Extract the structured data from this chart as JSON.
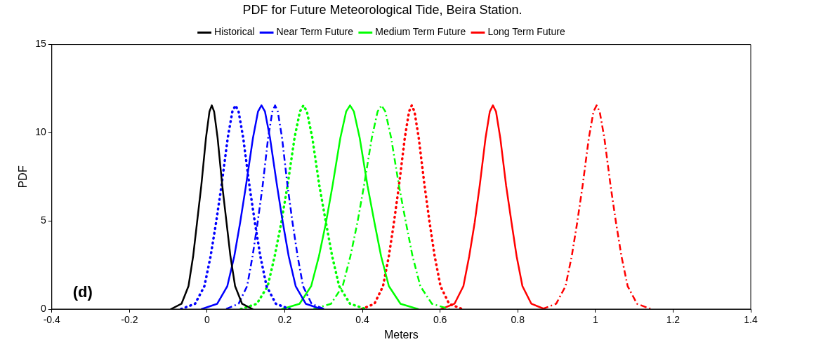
{
  "chart_data": {
    "type": "line",
    "title": "PDF for Future Meteorological Tide, Beira Station.",
    "xlabel": "Meters",
    "ylabel": "PDF",
    "xlim": [
      -0.4,
      1.4
    ],
    "xticks": [
      -0.4,
      -0.2,
      0,
      0.2,
      0.4,
      0.6,
      0.8,
      1,
      1.2,
      1.4
    ],
    "ylim": [
      0,
      15
    ],
    "yticks": [
      0,
      5,
      10,
      15
    ],
    "grid": false,
    "legend": "top",
    "marker": "none",
    "annotations": [
      "(d)"
    ],
    "series": [
      {
        "name": "Historical",
        "color": "#000000",
        "line_style": "solid",
        "x": [
          -0.093,
          -0.066,
          -0.048,
          -0.036,
          -0.026,
          -0.015,
          -0.003,
          0.006,
          0.012,
          0.018,
          0.027,
          0.039,
          0.05,
          0.06,
          0.072,
          0.09,
          0.117
        ],
        "values": [
          0,
          0.3,
          1.3,
          3,
          4.9,
          7,
          9.7,
          11.2,
          11.55,
          11.2,
          9.7,
          7,
          4.9,
          3,
          1.3,
          0.3,
          0
        ]
      },
      {
        "color": "#0000ff",
        "line_style": "dotted",
        "x": [
          -0.067,
          -0.031,
          -0.007,
          0.009,
          0.023,
          0.037,
          0.053,
          0.065,
          0.073,
          0.081,
          0.093,
          0.109,
          0.123,
          0.137,
          0.153,
          0.177,
          0.213
        ],
        "values": [
          0,
          0.3,
          1.3,
          3,
          4.9,
          7,
          9.7,
          11.2,
          11.55,
          11.2,
          9.7,
          7,
          4.9,
          3,
          1.3,
          0.3,
          0
        ]
      },
      {
        "name": "Near Term Future",
        "color": "#0000ff",
        "line_style": "solid",
        "x": [
          -0.014,
          0.026,
          0.052,
          0.07,
          0.085,
          0.1,
          0.118,
          0.131,
          0.14,
          0.149,
          0.162,
          0.18,
          0.195,
          0.21,
          0.228,
          0.254,
          0.294
        ],
        "values": [
          0,
          0.3,
          1.3,
          3,
          4.9,
          7,
          9.7,
          11.2,
          11.55,
          11.2,
          9.7,
          7,
          4.9,
          3,
          1.3,
          0.3,
          0
        ]
      },
      {
        "color": "#0000ff",
        "line_style": "dashed",
        "x": [
          0.049,
          0.081,
          0.103,
          0.117,
          0.13,
          0.143,
          0.157,
          0.168,
          0.175,
          0.182,
          0.193,
          0.207,
          0.22,
          0.233,
          0.247,
          0.269,
          0.301
        ],
        "values": [
          0,
          0.3,
          1.3,
          3,
          4.9,
          7,
          9.7,
          11.2,
          11.55,
          11.2,
          9.7,
          7,
          4.9,
          3,
          1.3,
          0.3,
          0
        ]
      },
      {
        "color": "#00ff00",
        "line_style": "dotted",
        "x": [
          0.087,
          0.128,
          0.156,
          0.174,
          0.191,
          0.207,
          0.225,
          0.239,
          0.248,
          0.257,
          0.271,
          0.289,
          0.306,
          0.322,
          0.34,
          0.368,
          0.409
        ],
        "values": [
          0,
          0.3,
          1.3,
          3,
          4.9,
          7,
          9.7,
          11.2,
          11.55,
          11.2,
          9.7,
          7,
          4.9,
          3,
          1.3,
          0.3,
          0
        ]
      },
      {
        "name": "Medium Term Future",
        "color": "#00ff00",
        "line_style": "solid",
        "x": [
          0.193,
          0.238,
          0.268,
          0.288,
          0.306,
          0.323,
          0.343,
          0.358,
          0.368,
          0.378,
          0.393,
          0.413,
          0.431,
          0.448,
          0.468,
          0.498,
          0.543
        ],
        "values": [
          0,
          0.3,
          1.3,
          3,
          4.9,
          7,
          9.7,
          11.2,
          11.55,
          11.2,
          9.7,
          7,
          4.9,
          3,
          1.3,
          0.3,
          0
        ]
      },
      {
        "color": "#00ff00",
        "line_style": "dashed",
        "x": [
          0.274,
          0.319,
          0.349,
          0.369,
          0.387,
          0.404,
          0.424,
          0.439,
          0.449,
          0.459,
          0.474,
          0.494,
          0.512,
          0.529,
          0.549,
          0.579,
          0.624
        ],
        "values": [
          0,
          0.3,
          1.3,
          3,
          4.9,
          7,
          9.7,
          11.2,
          11.55,
          11.2,
          9.7,
          7,
          4.9,
          3,
          1.3,
          0.3,
          0
        ]
      },
      {
        "color": "#ff0000",
        "line_style": "dotted",
        "x": [
          0.398,
          0.431,
          0.453,
          0.468,
          0.481,
          0.494,
          0.509,
          0.52,
          0.527,
          0.534,
          0.545,
          0.56,
          0.573,
          0.586,
          0.601,
          0.623,
          0.657
        ],
        "values": [
          0,
          0.3,
          1.3,
          3,
          4.9,
          7,
          9.7,
          11.2,
          11.55,
          11.2,
          9.7,
          7,
          4.9,
          3,
          1.3,
          0.3,
          0
        ]
      },
      {
        "name": "Long Term Future",
        "color": "#ff0000",
        "line_style": "solid",
        "x": [
          0.603,
          0.637,
          0.66,
          0.675,
          0.689,
          0.702,
          0.717,
          0.728,
          0.736,
          0.744,
          0.755,
          0.77,
          0.784,
          0.797,
          0.812,
          0.835,
          0.869
        ],
        "values": [
          0,
          0.3,
          1.3,
          3,
          4.9,
          7,
          9.7,
          11.2,
          11.55,
          11.2,
          9.7,
          7,
          4.9,
          3,
          1.3,
          0.3,
          0
        ]
      },
      {
        "color": "#ff0000",
        "line_style": "dashed",
        "x": [
          0.863,
          0.899,
          0.923,
          0.939,
          0.953,
          0.967,
          0.983,
          0.995,
          1.003,
          1.011,
          1.023,
          1.039,
          1.053,
          1.067,
          1.083,
          1.107,
          1.143
        ],
        "values": [
          0,
          0.3,
          1.3,
          3,
          4.9,
          7,
          9.7,
          11.2,
          11.55,
          11.2,
          9.7,
          7,
          4.9,
          3,
          1.3,
          0.3,
          0
        ]
      }
    ]
  }
}
